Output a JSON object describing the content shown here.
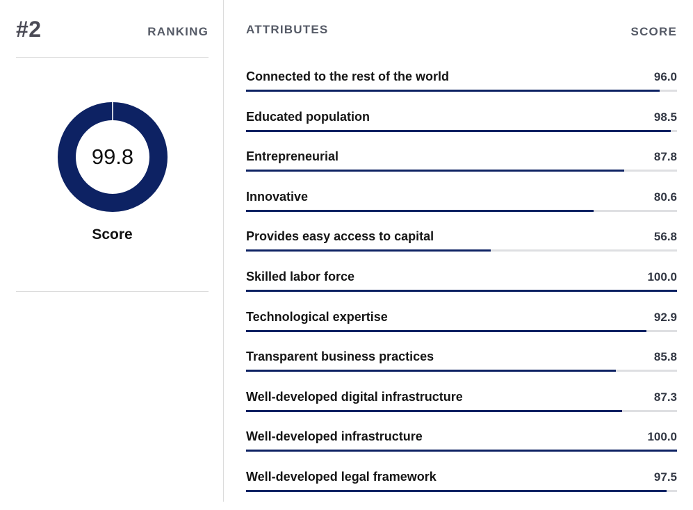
{
  "ranking": {
    "position": "#2",
    "label": "RANKING"
  },
  "overall": {
    "score_text": "99.8",
    "score_value": 99.8,
    "label": "Score"
  },
  "attributes": {
    "header": "ATTRIBUTES",
    "score_header": "SCORE",
    "items": [
      {
        "label": "Connected to the rest of the world",
        "score": "96.0",
        "value": 96.0
      },
      {
        "label": "Educated population",
        "score": "98.5",
        "value": 98.5
      },
      {
        "label": "Entrepreneurial",
        "score": "87.8",
        "value": 87.8
      },
      {
        "label": "Innovative",
        "score": "80.6",
        "value": 80.6
      },
      {
        "label": "Provides easy access to capital",
        "score": "56.8",
        "value": 56.8
      },
      {
        "label": "Skilled labor force",
        "score": "100.0",
        "value": 100.0
      },
      {
        "label": "Technological expertise",
        "score": "92.9",
        "value": 92.9
      },
      {
        "label": "Transparent business practices",
        "score": "85.8",
        "value": 85.8
      },
      {
        "label": "Well-developed digital infrastructure",
        "score": "87.3",
        "value": 87.3
      },
      {
        "label": "Well-developed infrastructure",
        "score": "100.0",
        "value": 100.0
      },
      {
        "label": "Well-developed legal framework",
        "score": "97.5",
        "value": 97.5
      }
    ]
  },
  "colors": {
    "accent": "#0d2263",
    "track": "#dedfe2",
    "divider": "#dcdcdc",
    "header_text": "#555a66"
  }
}
